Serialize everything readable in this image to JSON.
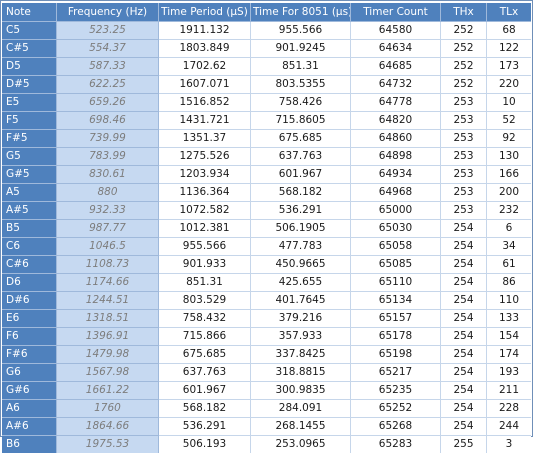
{
  "table": {
    "headers": [
      "Note",
      "Frequency (Hz)",
      "Time Period (µS)",
      "Time For 8051 (µs)",
      "Timer Count",
      "THx",
      "TLx"
    ],
    "rows": [
      [
        "C5",
        "523.25",
        "1911.132",
        "955.566",
        "64580",
        "252",
        "68"
      ],
      [
        "C#5",
        "554.37",
        "1803.849",
        "901.9245",
        "64634",
        "252",
        "122"
      ],
      [
        "D5",
        "587.33",
        "1702.62",
        "851.31",
        "64685",
        "252",
        "173"
      ],
      [
        "D#5",
        "622.25",
        "1607.071",
        "803.5355",
        "64732",
        "252",
        "220"
      ],
      [
        "E5",
        "659.26",
        "1516.852",
        "758.426",
        "64778",
        "253",
        "10"
      ],
      [
        "F5",
        "698.46",
        "1431.721",
        "715.8605",
        "64820",
        "253",
        "52"
      ],
      [
        "F#5",
        "739.99",
        "1351.37",
        "675.685",
        "64860",
        "253",
        "92"
      ],
      [
        "G5",
        "783.99",
        "1275.526",
        "637.763",
        "64898",
        "253",
        "130"
      ],
      [
        "G#5",
        "830.61",
        "1203.934",
        "601.967",
        "64934",
        "253",
        "166"
      ],
      [
        "A5",
        "880",
        "1136.364",
        "568.182",
        "64968",
        "253",
        "200"
      ],
      [
        "A#5",
        "932.33",
        "1072.582",
        "536.291",
        "65000",
        "253",
        "232"
      ],
      [
        "B5",
        "987.77",
        "1012.381",
        "506.1905",
        "65030",
        "254",
        "6"
      ],
      [
        "C6",
        "1046.5",
        "955.566",
        "477.783",
        "65058",
        "254",
        "34"
      ],
      [
        "C#6",
        "1108.73",
        "901.933",
        "450.9665",
        "65085",
        "254",
        "61"
      ],
      [
        "D6",
        "1174.66",
        "851.31",
        "425.655",
        "65110",
        "254",
        "86"
      ],
      [
        "D#6",
        "1244.51",
        "803.529",
        "401.7645",
        "65134",
        "254",
        "110"
      ],
      [
        "E6",
        "1318.51",
        "758.432",
        "379.216",
        "65157",
        "254",
        "133"
      ],
      [
        "F6",
        "1396.91",
        "715.866",
        "357.933",
        "65178",
        "254",
        "154"
      ],
      [
        "F#6",
        "1479.98",
        "675.685",
        "337.8425",
        "65198",
        "254",
        "174"
      ],
      [
        "G6",
        "1567.98",
        "637.763",
        "318.8815",
        "65217",
        "254",
        "193"
      ],
      [
        "G#6",
        "1661.22",
        "601.967",
        "300.9835",
        "65235",
        "254",
        "211"
      ],
      [
        "A6",
        "1760",
        "568.182",
        "284.091",
        "65252",
        "254",
        "228"
      ],
      [
        "A#6",
        "1864.66",
        "536.291",
        "268.1455",
        "65268",
        "254",
        "244"
      ],
      [
        "B6",
        "1975.53",
        "506.193",
        "253.0965",
        "65283",
        "255",
        "3"
      ]
    ]
  },
  "colors": {
    "header_bg": "#4f81bd",
    "header_text": "#ffffff",
    "frequency_bg": "#c6d9f1",
    "frequency_text": "#7d7d7d",
    "grid_line": "#c6d6ea"
  }
}
